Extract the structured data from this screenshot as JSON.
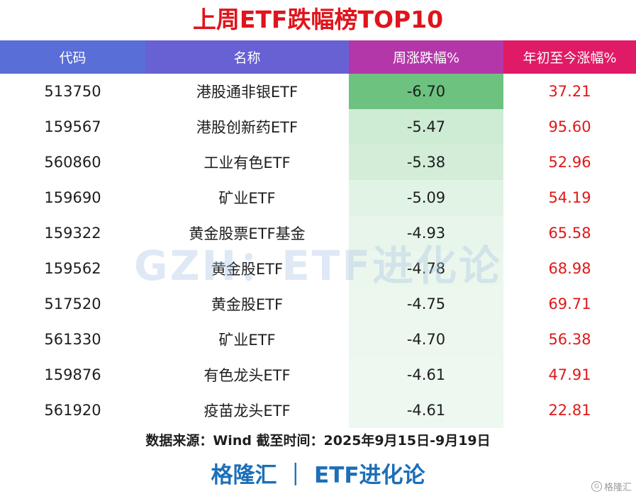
{
  "title": "上周ETF跌幅榜TOP10",
  "watermark": "GZH：ETF进化论",
  "colors": {
    "title": "#e0141c",
    "ytd_text": "#e01818",
    "header_gradient": [
      "#5a6ed8",
      "#6761d4",
      "#b337a8",
      "#e01a66"
    ],
    "heat_strong": "#6cc27e",
    "heat_weak": "#ffffff",
    "brand": "#1c6fb8"
  },
  "chart_data": {
    "type": "table",
    "title": "上周ETF跌幅榜TOP10",
    "columns": [
      "代码",
      "名称",
      "周涨跌幅%",
      "年初至今涨幅%"
    ],
    "rows": [
      [
        "513750",
        "港股通非银ETF",
        "-6.70",
        "37.21"
      ],
      [
        "159567",
        "港股创新药ETF",
        "-5.47",
        "95.60"
      ],
      [
        "560860",
        "工业有色ETF",
        "-5.38",
        "52.96"
      ],
      [
        "159690",
        "矿业ETF",
        "-5.09",
        "54.19"
      ],
      [
        "159322",
        "黄金股票ETF基金",
        "-4.93",
        "65.58"
      ],
      [
        "159562",
        "黄金股ETF",
        "-4.78",
        "68.98"
      ],
      [
        "517520",
        "黄金股ETF",
        "-4.75",
        "69.71"
      ],
      [
        "561330",
        "矿业ETF",
        "-4.70",
        "56.38"
      ],
      [
        "159876",
        "有色龙头ETF",
        "-4.61",
        "47.91"
      ],
      [
        "561920",
        "疫苗龙头ETF",
        "-4.61",
        "22.81"
      ]
    ]
  },
  "source": "数据来源：Wind 截至时间：2025年9月15日-9月19日",
  "brand": "格隆汇 ｜ ETF进化论",
  "corner_logo": "格隆汇"
}
